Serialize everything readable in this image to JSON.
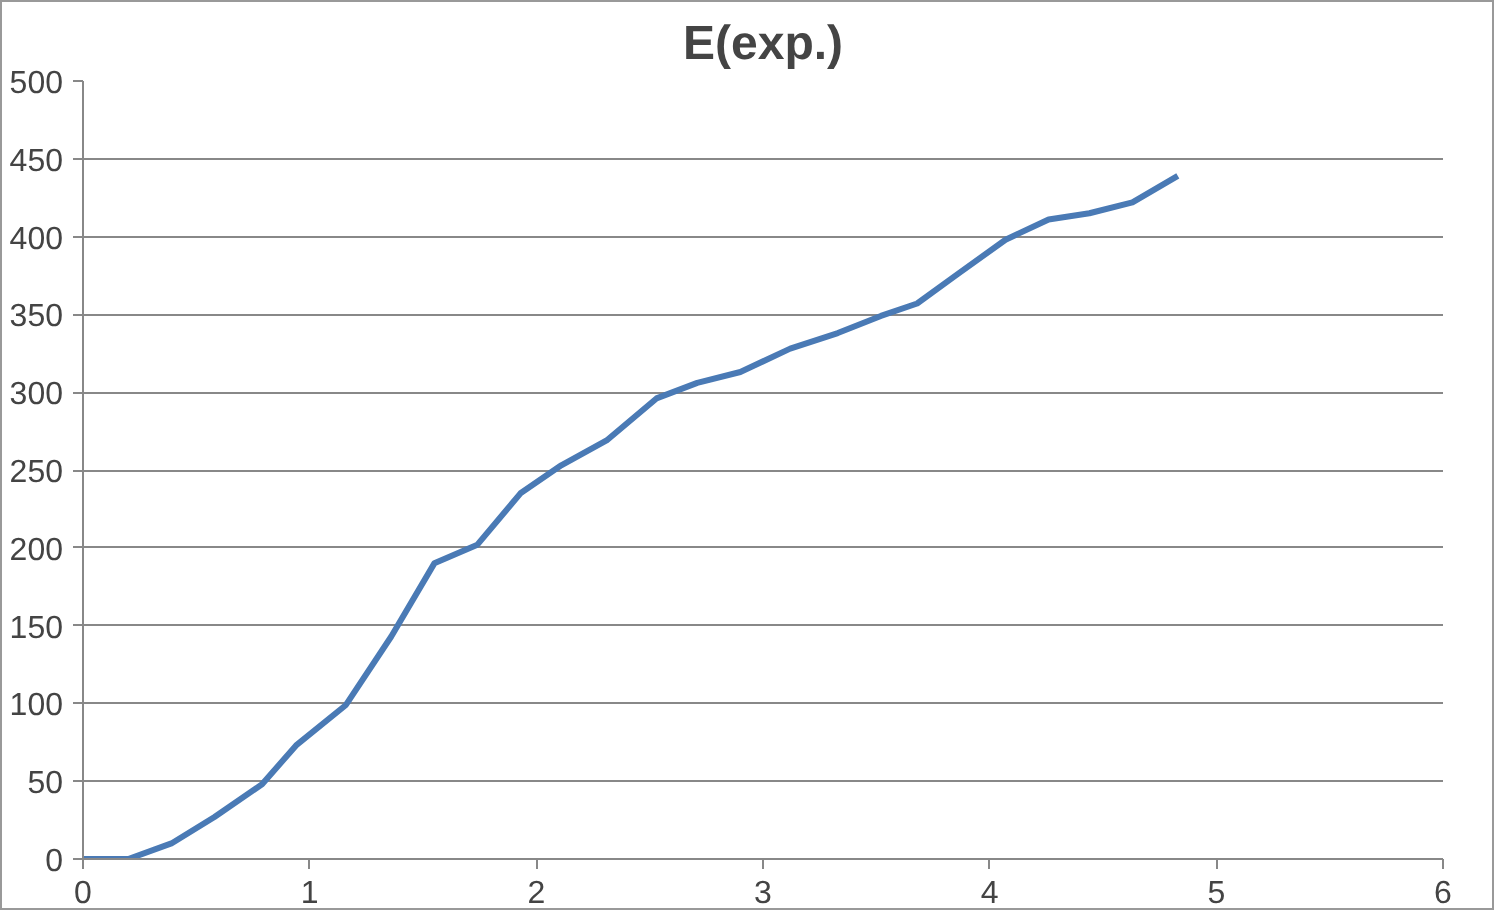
{
  "chart_data": {
    "type": "line",
    "title": "E(exp.)",
    "x": [
      0,
      0.2,
      0.39,
      0.58,
      0.79,
      0.94,
      1.16,
      1.36,
      1.55,
      1.74,
      1.93,
      2.11,
      2.31,
      2.53,
      2.71,
      2.9,
      3.12,
      3.33,
      3.52,
      3.68,
      3.86,
      4.07,
      4.26,
      4.44,
      4.63,
      4.83
    ],
    "series": [
      {
        "color": "#4a7ab5",
        "values": [
          0,
          0,
          10,
          27,
          48,
          73,
          99,
          143,
          190,
          202,
          235,
          253,
          269,
          296,
          306,
          313,
          328,
          338,
          349,
          357,
          376,
          398,
          411,
          415,
          422,
          439
        ]
      }
    ],
    "xlim": [
      0,
      6
    ],
    "xticks": [
      0,
      1,
      2,
      3,
      4,
      5,
      6
    ],
    "ylim": [
      0,
      500
    ],
    "yticks": [
      0,
      50,
      100,
      150,
      200,
      250,
      300,
      350,
      400,
      450,
      500
    ],
    "grid": "y",
    "marker": "none",
    "line_style": "solid"
  }
}
